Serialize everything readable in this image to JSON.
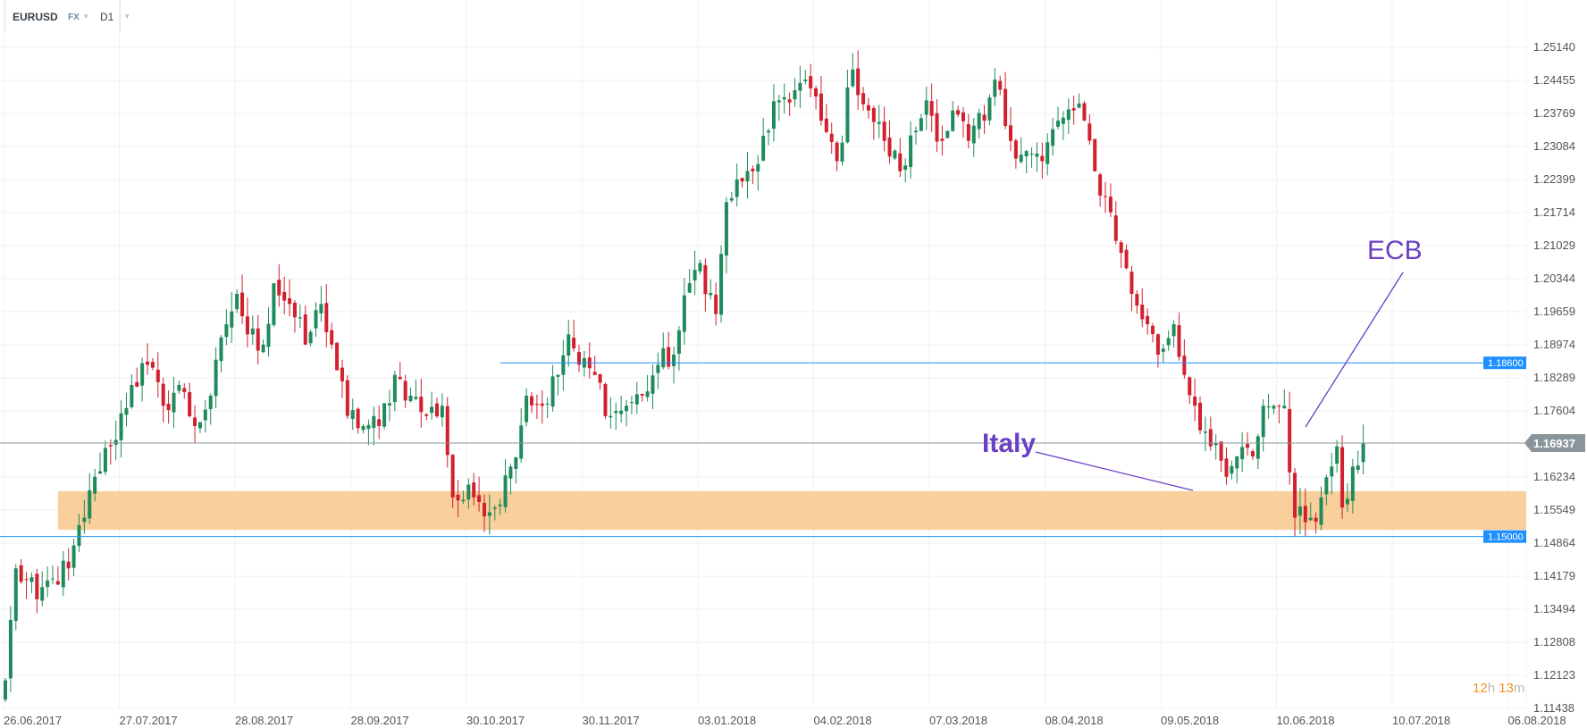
{
  "header": {
    "symbol": "EURUSD",
    "market": "FX",
    "timeframe": "D1"
  },
  "timer": {
    "hours": "12",
    "h": "h",
    "minutes": "13",
    "m": "m"
  },
  "colors": {
    "up": "#1f8b5c",
    "down": "#d1202e",
    "zone": "#f9cf9b",
    "level": "#1e90ff",
    "current": "#8a959b",
    "annotation": "#6a3fc4",
    "timer": "#f7931e"
  },
  "chart_data": {
    "type": "candlestick",
    "title": "EURUSD D1",
    "ylim": [
      1.11438,
      1.2555
    ],
    "y_ticks": [
      "1.25140",
      "1.24455",
      "1.23769",
      "1.23084",
      "1.22399",
      "1.21714",
      "1.21029",
      "1.20344",
      "1.19659",
      "1.18974",
      "1.18289",
      "1.17604",
      "1.16234",
      "1.15549",
      "1.14864",
      "1.14179",
      "1.13494",
      "1.12808",
      "1.12123",
      "1.11438"
    ],
    "x_ticks": [
      "26.06.2017",
      "27.07.2017",
      "28.08.2017",
      "28.09.2017",
      "30.10.2017",
      "30.11.2017",
      "03.01.2018",
      "04.02.2018",
      "07.03.2018",
      "08.04.2018",
      "09.05.2018",
      "10.06.2018",
      "10.07.2018",
      "06.08.2018"
    ],
    "close_keypoints": [
      [
        0,
        1.1202
      ],
      [
        2,
        1.1434
      ],
      [
        6,
        1.137
      ],
      [
        9,
        1.1413
      ],
      [
        12,
        1.1434
      ],
      [
        15,
        1.1539
      ],
      [
        17,
        1.1624
      ],
      [
        20,
        1.1687
      ],
      [
        24,
        1.1814
      ],
      [
        27,
        1.1856
      ],
      [
        30,
        1.1771
      ],
      [
        33,
        1.1814
      ],
      [
        36,
        1.1729
      ],
      [
        39,
        1.1792
      ],
      [
        42,
        1.194
      ],
      [
        44,
        1.2003
      ],
      [
        46,
        1.1919
      ],
      [
        49,
        1.1898
      ],
      [
        51,
        1.2025
      ],
      [
        54,
        1.1982
      ],
      [
        57,
        1.1898
      ],
      [
        60,
        1.1982
      ],
      [
        62,
        1.1898
      ],
      [
        65,
        1.175
      ],
      [
        68,
        1.1729
      ],
      [
        71,
        1.1729
      ],
      [
        74,
        1.1835
      ],
      [
        77,
        1.1792
      ],
      [
        80,
        1.175
      ],
      [
        83,
        1.1771
      ],
      [
        85,
        1.1581
      ],
      [
        89,
        1.1581
      ],
      [
        93,
        1.156
      ],
      [
        96,
        1.1645
      ],
      [
        99,
        1.1792
      ],
      [
        102,
        1.1771
      ],
      [
        105,
        1.1835
      ],
      [
        107,
        1.1919
      ],
      [
        109,
        1.1856
      ],
      [
        112,
        1.1835
      ],
      [
        115,
        1.175
      ],
      [
        118,
        1.1771
      ],
      [
        121,
        1.1792
      ],
      [
        124,
        1.1856
      ],
      [
        127,
        1.1877
      ],
      [
        130,
        1.2025
      ],
      [
        132,
        1.2067
      ],
      [
        135,
        1.1961
      ],
      [
        137,
        1.2193
      ],
      [
        140,
        1.2236
      ],
      [
        142,
        1.2257
      ],
      [
        145,
        1.2341
      ],
      [
        147,
        1.2404
      ],
      [
        150,
        1.2425
      ],
      [
        152,
        1.2447
      ],
      [
        155,
        1.2362
      ],
      [
        158,
        1.2278
      ],
      [
        161,
        1.2468
      ],
      [
        164,
        1.2383
      ],
      [
        167,
        1.232
      ],
      [
        170,
        1.2257
      ],
      [
        173,
        1.2341
      ],
      [
        175,
        1.2404
      ],
      [
        178,
        1.232
      ],
      [
        180,
        1.2383
      ],
      [
        183,
        1.232
      ],
      [
        186,
        1.2362
      ],
      [
        188,
        1.2447
      ],
      [
        191,
        1.232
      ],
      [
        194,
        1.2299
      ],
      [
        197,
        1.2278
      ],
      [
        200,
        1.2362
      ],
      [
        203,
        1.2383
      ],
      [
        205,
        1.2362
      ],
      [
        207,
        1.2257
      ],
      [
        210,
        1.2172
      ],
      [
        212,
        1.2088
      ],
      [
        214,
        1.2003
      ],
      [
        217,
        1.194
      ],
      [
        219,
        1.1877
      ],
      [
        222,
        1.194
      ],
      [
        224,
        1.1835
      ],
      [
        226,
        1.1771
      ],
      [
        229,
        1.1687
      ],
      [
        232,
        1.1624
      ],
      [
        234,
        1.1666
      ],
      [
        237,
        1.1666
      ],
      [
        239,
        1.1771
      ],
      [
        241,
        1.1771
      ],
      [
        243,
        1.1771
      ],
      [
        245,
        1.1539
      ],
      [
        248,
        1.1539
      ],
      [
        250,
        1.1581
      ],
      [
        253,
        1.1687
      ],
      [
        254,
        1.156
      ],
      [
        256,
        1.1645
      ],
      [
        258,
        1.1694
      ]
    ],
    "levels": [
      {
        "price": 1.186,
        "label": "1.18600",
        "from_index": 94
      },
      {
        "price": 1.15,
        "label": "1.15000",
        "from_index": -1
      }
    ],
    "zone": {
      "top": 1.1594,
      "bottom": 1.1514,
      "from_index": 10
    },
    "current_price": {
      "price": 1.16937,
      "label": "1.16937"
    },
    "annotations": [
      {
        "text": "Italy"
      },
      {
        "text": "ECB"
      }
    ],
    "grid": true
  }
}
